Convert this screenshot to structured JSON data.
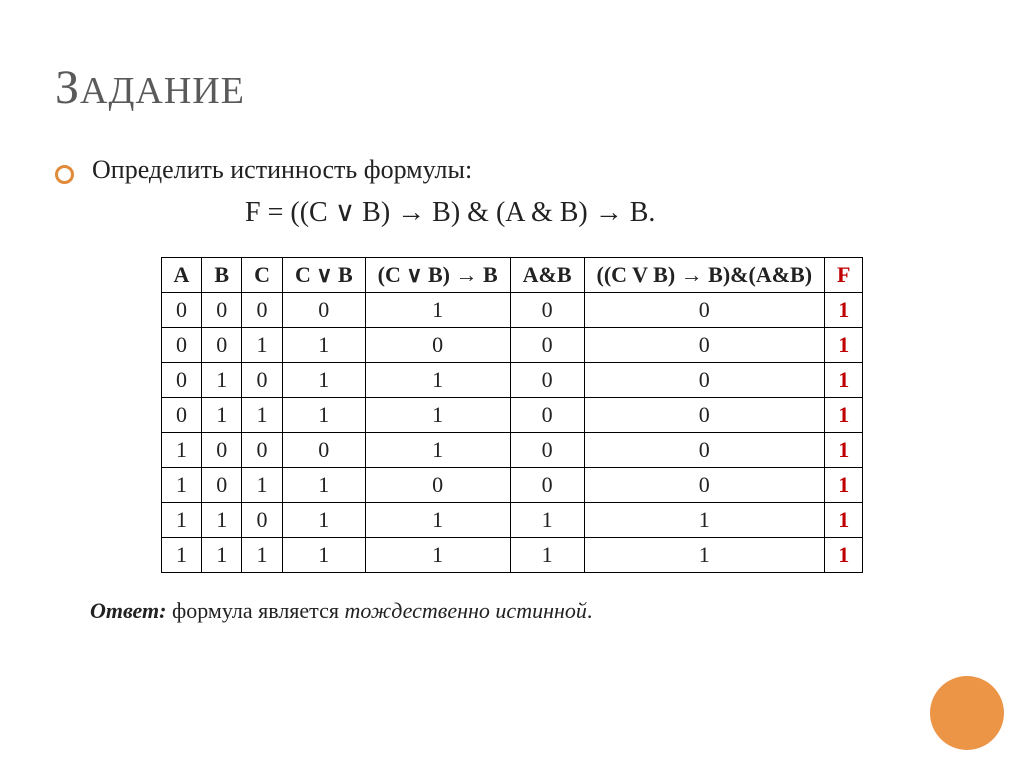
{
  "title": {
    "first": "З",
    "rest": "АДАНИЕ"
  },
  "task_text": "Определить истинность формулы:",
  "formula": "F = ((C ∨ B) →  B) & (A & B) → B.",
  "table": {
    "columns": [
      "A",
      "B",
      "C",
      "C ∨ B",
      "(C ∨ B) → B",
      "A&B",
      "((C V B) → B)&(A&B)",
      "F"
    ],
    "rows": [
      [
        "0",
        "0",
        "0",
        "0",
        "1",
        "0",
        "0",
        "1"
      ],
      [
        "0",
        "0",
        "1",
        "1",
        "0",
        "0",
        "0",
        "1"
      ],
      [
        "0",
        "1",
        "0",
        "1",
        "1",
        "0",
        "0",
        "1"
      ],
      [
        "0",
        "1",
        "1",
        "1",
        "1",
        "0",
        "0",
        "1"
      ],
      [
        "1",
        "0",
        "0",
        "0",
        "1",
        "0",
        "0",
        "1"
      ],
      [
        "1",
        "0",
        "1",
        "1",
        "0",
        "0",
        "0",
        "1"
      ],
      [
        "1",
        "1",
        "0",
        "1",
        "1",
        "1",
        "1",
        "1"
      ],
      [
        "1",
        "1",
        "1",
        "1",
        "1",
        "1",
        "1",
        "1"
      ]
    ],
    "highlight_last_col": true,
    "highlight_color": "#c00000"
  },
  "answer_label": "Ответ:",
  "answer_text_pre": " формула является ",
  "answer_text_em": "тождественно истинной",
  "answer_text_post": ".",
  "styling": {
    "bullet_border_color": "#e08a3a",
    "corner_circle_color": "#ec9547",
    "title_color": "#5a5a5a"
  }
}
